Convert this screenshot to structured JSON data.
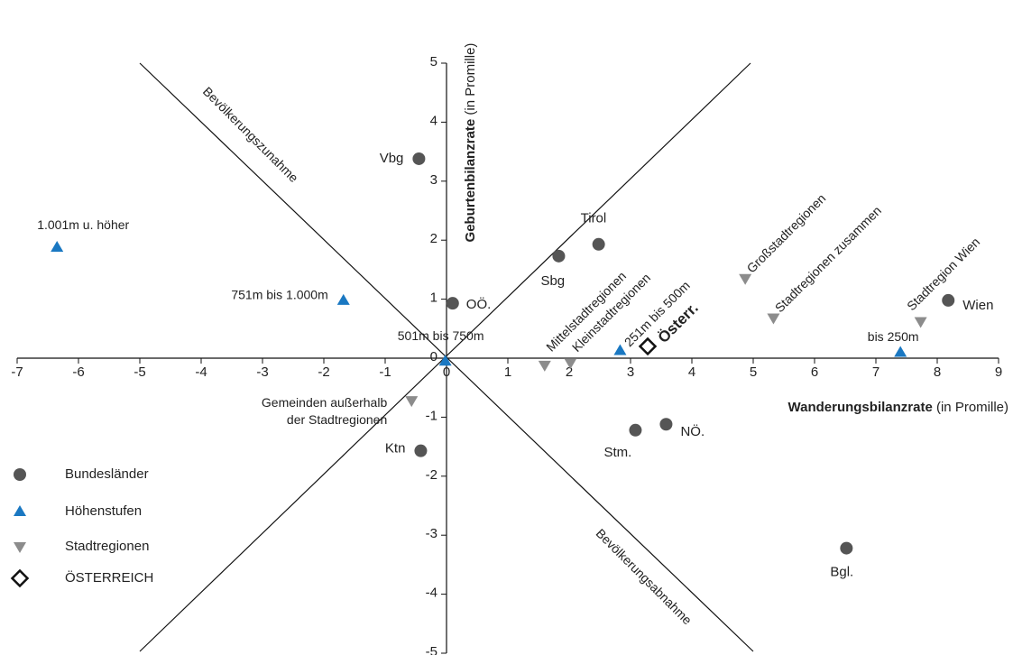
{
  "chart_data": {
    "type": "scatter",
    "x_title": "Wanderungsbilanzrate",
    "x_unit": "(in Promille)",
    "y_title": "Geburtenbilanzrate",
    "y_unit": "(in Promille)",
    "diagonal_labels": [
      "Bevölkerungszunahme",
      "Bevölkerungsabnahme"
    ],
    "xlim": [
      -7,
      9
    ],
    "ylim": [
      -5,
      5
    ],
    "xticks": [
      -7,
      -6,
      -5,
      -4,
      -3,
      -2,
      -1,
      0,
      1,
      2,
      3,
      4,
      5,
      6,
      7,
      8,
      9
    ],
    "yticks": [
      -5,
      -4,
      -3,
      -2,
      -1,
      0,
      1,
      2,
      3,
      4,
      5
    ],
    "series": [
      {
        "name": "Bundesländer",
        "color": "#555555",
        "marker": "circle",
        "labels": [
          "Vbg",
          "Tirol",
          "Sbg",
          "OÖ.",
          "Wien",
          "NÖ.",
          "Stm.",
          "Ktn",
          "Bgl."
        ],
        "x": [
          -0.45,
          2.48,
          1.83,
          0.1,
          8.18,
          3.58,
          3.08,
          -0.42,
          6.52
        ],
        "values": [
          3.38,
          1.93,
          1.73,
          0.93,
          0.98,
          -1.12,
          -1.22,
          -1.57,
          -3.22
        ]
      },
      {
        "name": "Höhenstufen",
        "color": "#1a78c2",
        "marker": "triangle-up",
        "labels": [
          "1.001m u. höher",
          "751m bis 1.000m",
          "501m bis 750m",
          "251m bis 500m",
          "bis 250m"
        ],
        "x": [
          -6.35,
          -1.68,
          -0.02,
          2.83,
          7.4
        ],
        "values": [
          1.88,
          0.98,
          -0.05,
          0.13,
          0.1
        ]
      },
      {
        "name": "Stadtregionen",
        "color": "#8c8c8c",
        "marker": "triangle-down",
        "labels": [
          [
            "Gemeinden außerhalb",
            "der Stadtregionen"
          ],
          "Mittelstadtregionen",
          "Kleinstadtregionen",
          "Großstadtregionen",
          "Stadtregionen zusammen",
          "Stadtregion Wien"
        ],
        "x": [
          -0.57,
          1.6,
          2.02,
          4.87,
          5.33,
          7.73
        ],
        "values": [
          -0.72,
          -0.12,
          -0.08,
          1.35,
          0.68,
          0.62
        ]
      },
      {
        "name": "ÖSTERREICH",
        "color": "#111111",
        "marker": "diamond",
        "labels": [
          "Österr."
        ],
        "x": [
          3.28
        ],
        "values": [
          0.2
        ]
      }
    ]
  }
}
